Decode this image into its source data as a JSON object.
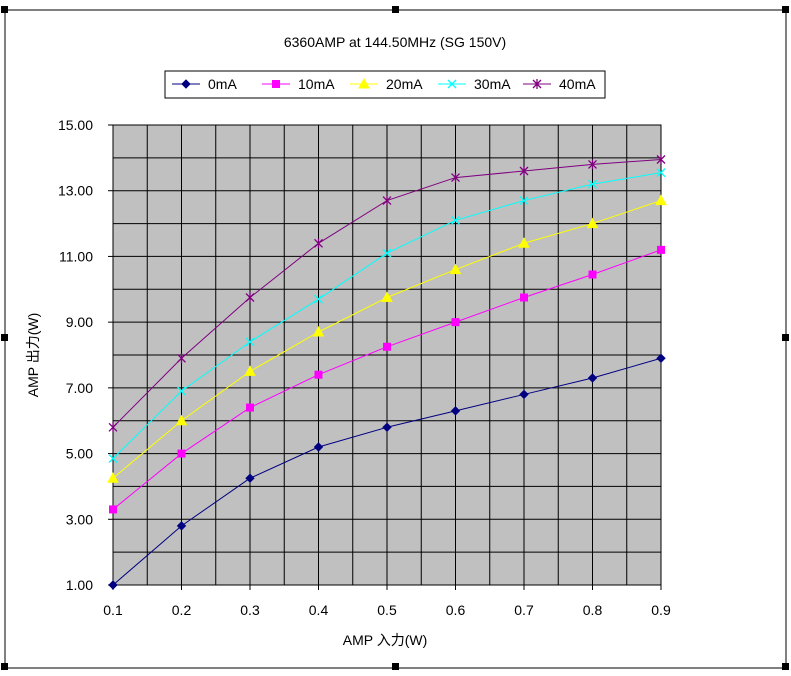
{
  "chart_data": {
    "type": "line",
    "title": "6360AMP  at  144.50MHz (SG 150V)",
    "xlabel": "AMP  入力(W)",
    "ylabel": "AMP  出力(W)",
    "categories": [
      "0.1",
      "0.2",
      "0.3",
      "0.4",
      "0.5",
      "0.6",
      "0.7",
      "0.8",
      "0.9"
    ],
    "x": [
      0.1,
      0.2,
      0.3,
      0.4,
      0.5,
      0.6,
      0.7,
      0.8,
      0.9
    ],
    "y_ticks": [
      "1.00",
      "3.00",
      "5.00",
      "7.00",
      "9.00",
      "11.00",
      "13.00",
      "15.00"
    ],
    "ylim": [
      1,
      15
    ],
    "grid": true,
    "legend_position": "top",
    "plot_background": "#c0c0c0",
    "series": [
      {
        "name": "0mA",
        "color": "#000080",
        "marker": "diamond",
        "values": [
          1.0,
          2.8,
          4.25,
          5.2,
          5.8,
          6.3,
          6.8,
          7.3,
          7.9
        ]
      },
      {
        "name": "10mA",
        "color": "#ff00ff",
        "marker": "square",
        "values": [
          3.3,
          5.0,
          6.4,
          7.4,
          8.25,
          9.0,
          9.75,
          10.45,
          11.2
        ]
      },
      {
        "name": "20mA",
        "color": "#ffff00",
        "marker": "triangle",
        "values": [
          4.25,
          6.0,
          7.5,
          8.7,
          9.75,
          10.6,
          11.4,
          12.0,
          12.7
        ]
      },
      {
        "name": "30mA",
        "color": "#00ffff",
        "marker": "x",
        "values": [
          4.85,
          6.9,
          8.4,
          9.7,
          11.1,
          12.1,
          12.7,
          13.2,
          13.55
        ]
      },
      {
        "name": "40mA",
        "color": "#800080",
        "marker": "star",
        "values": [
          5.8,
          7.9,
          9.75,
          11.4,
          12.7,
          13.4,
          13.6,
          13.8,
          13.95
        ]
      }
    ]
  }
}
